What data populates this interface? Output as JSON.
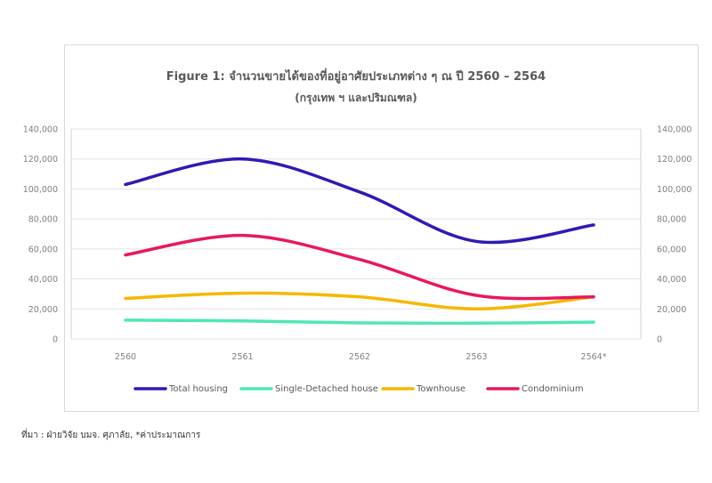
{
  "chart_data": {
    "type": "line",
    "title": "Figure 1: จำนวนขายได้ของที่อยู่อาศัยประเภทต่าง ๆ ณ ปี 2560 – 2564",
    "subtitle": "(กรุงเทพ ฯ และปริมณฑล)",
    "categories": [
      "2560",
      "2561",
      "2562",
      "2563",
      "2564*"
    ],
    "ylim": [
      0,
      140000
    ],
    "y_ticks": [
      "0",
      "20,000",
      "40,000",
      "60,000",
      "80,000",
      "100,000",
      "120,000",
      "140,000"
    ],
    "y2_ticks": [
      "0",
      "20,000",
      "40,000",
      "60,000",
      "80,000",
      "100,000",
      "120,000",
      "140,000"
    ],
    "grid": true,
    "legend_position": "bottom",
    "series": [
      {
        "name": "Total housing",
        "values": [
          103000,
          120000,
          98000,
          65000,
          76000
        ],
        "color": "#2e1bb3"
      },
      {
        "name": "Single-Detached house",
        "values": [
          12500,
          12000,
          10700,
          10500,
          11200
        ],
        "color": "#4fe8b0"
      },
      {
        "name": "Townhouse",
        "values": [
          27000,
          30500,
          28000,
          20000,
          28000
        ],
        "color": "#f5b800"
      },
      {
        "name": "Condominium",
        "values": [
          56000,
          69000,
          53000,
          29000,
          28000
        ],
        "color": "#e8195a"
      }
    ]
  },
  "source_note": "ที่มา : ฝ่ายวิจัย บมจ. ศุภาลัย, *ค่าประมาณการ"
}
